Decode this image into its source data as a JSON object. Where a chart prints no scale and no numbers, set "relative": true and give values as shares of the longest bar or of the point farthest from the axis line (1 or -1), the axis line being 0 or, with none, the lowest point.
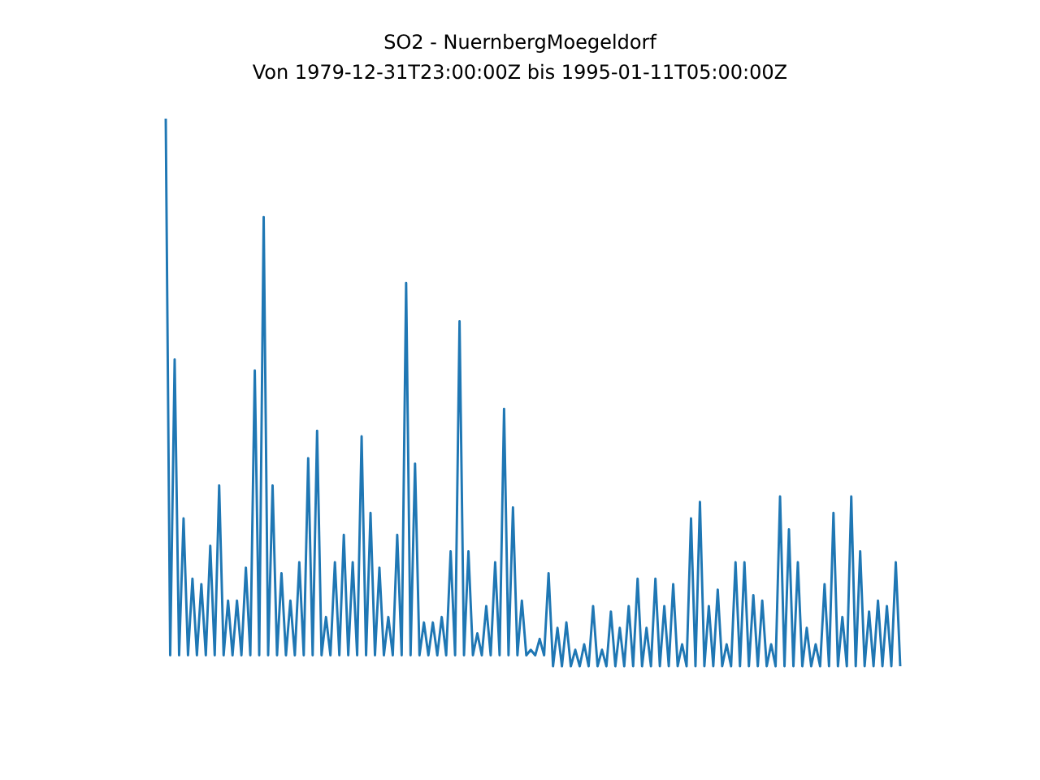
{
  "chart_data": {
    "type": "line",
    "title": "SO2 - NuernbergMoegeldorf",
    "subtitle": "Von 1979-12-31T23:00:00Z bis 1995-01-11T05:00:00Z",
    "relative": true,
    "color": "#1f77b4",
    "categories": [
      null,
      null,
      null,
      null,
      null,
      null,
      null,
      null,
      null,
      null,
      null,
      null,
      null,
      null,
      null,
      null,
      null,
      null,
      null,
      null,
      null,
      null,
      null,
      null,
      null,
      null,
      null,
      null,
      null,
      null,
      null,
      null,
      null,
      null,
      null,
      null,
      null,
      null,
      null,
      null,
      null,
      null,
      null,
      null,
      null,
      null,
      null,
      null,
      null,
      null,
      null,
      null,
      null,
      null,
      null,
      null,
      null,
      null,
      null,
      null,
      null,
      null,
      null,
      null,
      null,
      null,
      null,
      null,
      null,
      null,
      null,
      null,
      null,
      null,
      null,
      null,
      null,
      null,
      null,
      null,
      null,
      null,
      null,
      null,
      null,
      null,
      null,
      null,
      null,
      null,
      null,
      null,
      null,
      null,
      null,
      null,
      null,
      null,
      null,
      null,
      null,
      null,
      null,
      null,
      null,
      null,
      null,
      null,
      null,
      null,
      null,
      null,
      null,
      null,
      null,
      null,
      null,
      null,
      null,
      null,
      null,
      null,
      null,
      null,
      null,
      null,
      null,
      null,
      null,
      null,
      null,
      null,
      null,
      null,
      null,
      null,
      null,
      null,
      null,
      null,
      null,
      null,
      null,
      null,
      null,
      null,
      null,
      null,
      null,
      null,
      null,
      null,
      null,
      null,
      null,
      null,
      null,
      null,
      null,
      null,
      null,
      null,
      null,
      null,
      null,
      null
    ],
    "values": [
      1.0,
      0.02,
      0.56,
      0.02,
      0.27,
      0.02,
      0.16,
      0.02,
      0.15,
      0.02,
      0.22,
      0.02,
      0.33,
      0.02,
      0.12,
      0.02,
      0.12,
      0.02,
      0.18,
      0.02,
      0.54,
      0.02,
      0.82,
      0.02,
      0.33,
      0.02,
      0.17,
      0.02,
      0.12,
      0.02,
      0.19,
      0.02,
      0.38,
      0.02,
      0.43,
      0.02,
      0.09,
      0.02,
      0.19,
      0.02,
      0.24,
      0.02,
      0.19,
      0.02,
      0.42,
      0.02,
      0.28,
      0.02,
      0.18,
      0.02,
      0.09,
      0.02,
      0.24,
      0.02,
      0.7,
      0.02,
      0.37,
      0.02,
      0.08,
      0.02,
      0.08,
      0.02,
      0.09,
      0.02,
      0.21,
      0.02,
      0.63,
      0.02,
      0.21,
      0.02,
      0.06,
      0.02,
      0.11,
      0.02,
      0.19,
      0.02,
      0.47,
      0.02,
      0.29,
      0.02,
      0.12,
      0.02,
      0.03,
      0.02,
      0.05,
      0.02,
      0.17,
      0.0,
      0.07,
      0.0,
      0.08,
      0.0,
      0.03,
      0.0,
      0.04,
      0.0,
      0.11,
      0.0,
      0.03,
      0.0,
      0.1,
      0.0,
      0.07,
      0.0,
      0.11,
      0.0,
      0.16,
      0.0,
      0.07,
      0.0,
      0.16,
      0.0,
      0.11,
      0.0,
      0.15,
      0.0,
      0.04,
      0.0,
      0.27,
      0.0,
      0.3,
      0.0,
      0.11,
      0.0,
      0.14,
      0.0,
      0.04,
      0.0,
      0.19,
      0.0,
      0.19,
      0.0,
      0.13,
      0.0,
      0.12,
      0.0,
      0.04,
      0.0,
      0.31,
      0.0,
      0.25,
      0.0,
      0.19,
      0.0,
      0.07,
      0.0,
      0.04,
      0.0,
      0.15,
      0.0,
      0.28,
      0.0,
      0.09,
      0.0,
      0.31,
      0.0,
      0.21,
      0.0,
      0.1,
      0.0,
      0.12,
      0.0,
      0.11,
      0.0,
      0.19,
      0.0
    ]
  }
}
